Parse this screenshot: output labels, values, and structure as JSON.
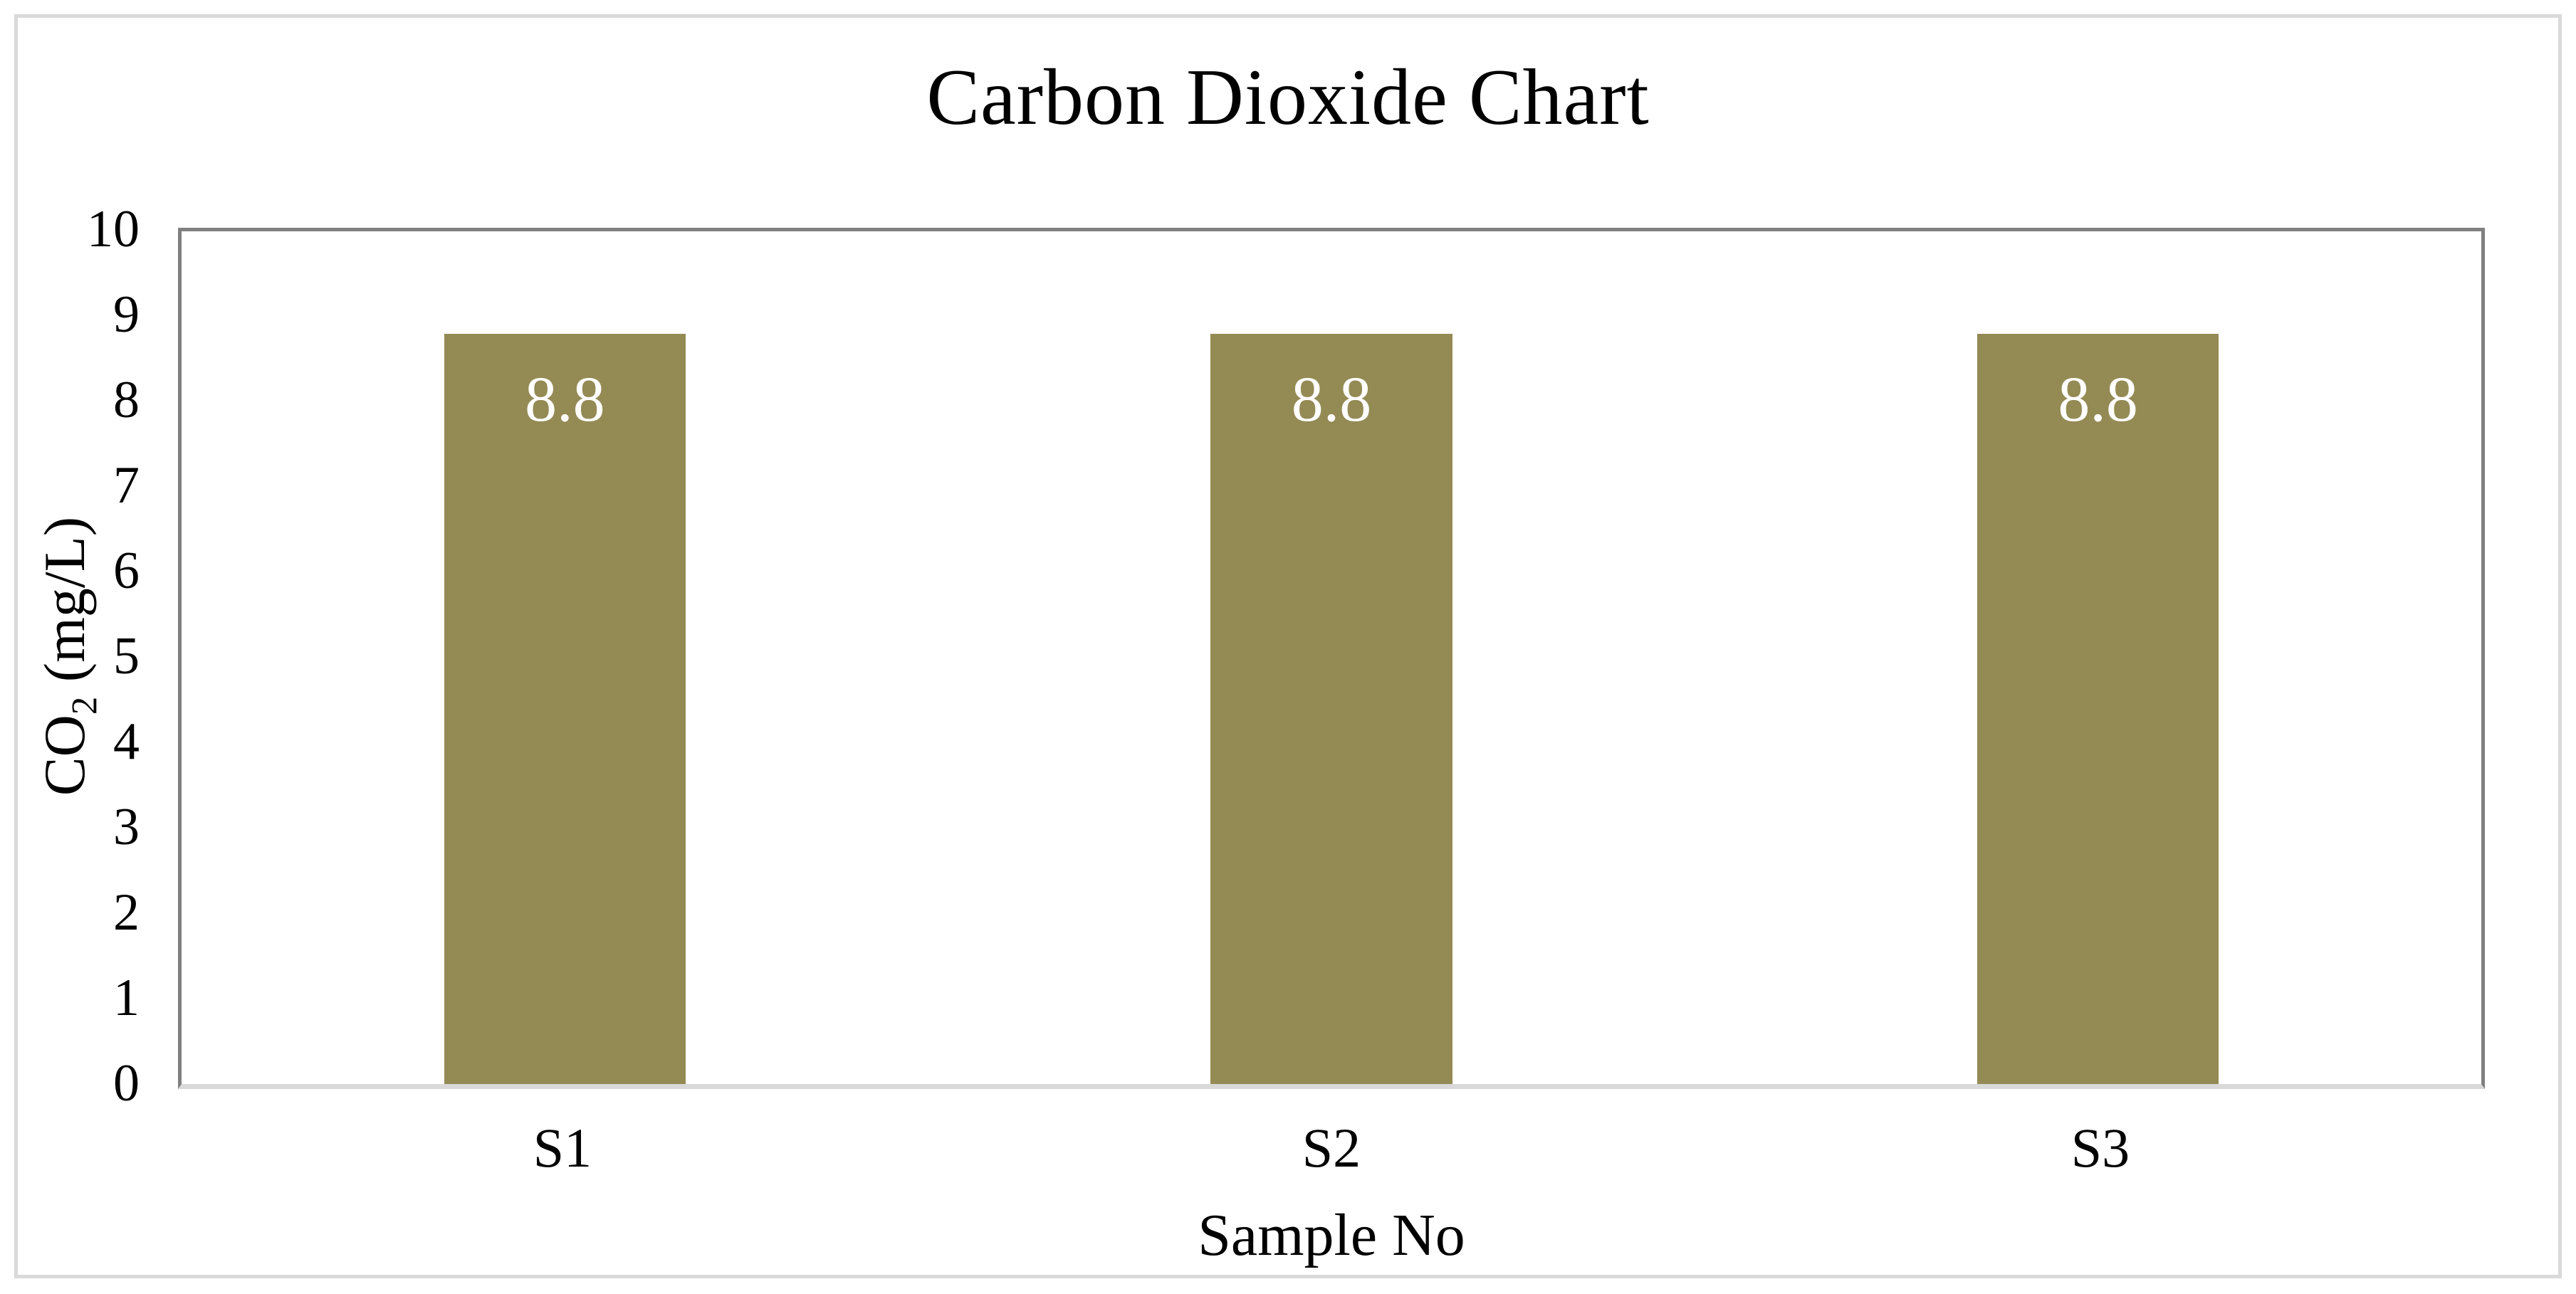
{
  "chart_data": {
    "type": "bar",
    "title": "Carbon Dioxide Chart",
    "categories": [
      "S1",
      "S2",
      "S3"
    ],
    "values": [
      8.8,
      8.8,
      8.8
    ],
    "data_labels": [
      "8.8",
      "8.8",
      "8.8"
    ],
    "xlabel": "Sample No",
    "ylabel": "CO2 (mg/L)",
    "ylabel_base": "CO",
    "ylabel_sub": "2",
    "ylabel_rest": " (mg/L)",
    "ylim": [
      0,
      10
    ],
    "yticks": [
      "0",
      "1",
      "2",
      "3",
      "4",
      "5",
      "6",
      "7",
      "8",
      "9",
      "10"
    ],
    "grid": false,
    "legend": false,
    "data_labels_position": "inside-end",
    "colors": {
      "bar_fill": "#948A54",
      "data_label_text": "#FFFFFF",
      "plot_border": "#808080",
      "x_axis_line": "#D9D9D9",
      "outer_border": "#D9D9D9",
      "text": "#000000",
      "background": "#FFFFFF"
    }
  }
}
